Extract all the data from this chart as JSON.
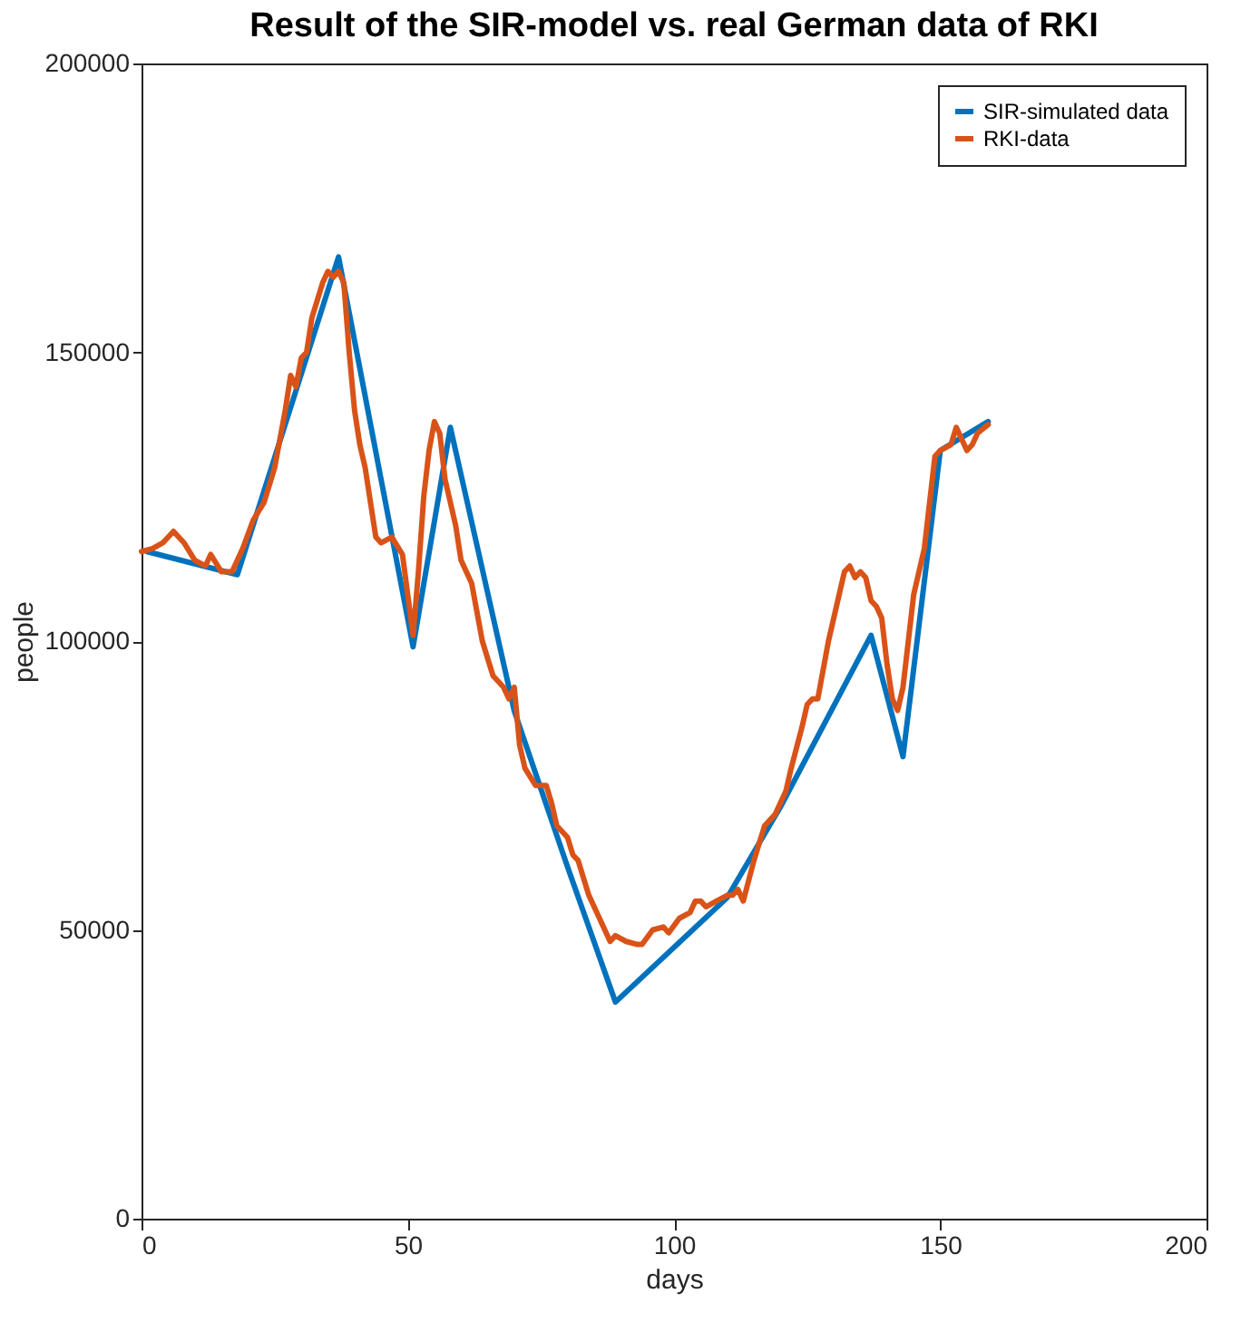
{
  "chart_data": {
    "type": "line",
    "title": "Result of the SIR-model vs. real German data of RKI",
    "xlabel": "days",
    "ylabel": "people",
    "xlim": [
      0,
      200
    ],
    "xticks": [
      0,
      50,
      100,
      150,
      200
    ],
    "ylim": [
      0,
      200000
    ],
    "yticks": [
      0,
      50000,
      100000,
      150000,
      200000
    ],
    "grid": false,
    "legend": "top right",
    "line_style": "solid",
    "marker": "none",
    "series": [
      {
        "name": "SIR-simulated data",
        "color": "#0072bd",
        "x": [
          1,
          18,
          37,
          51,
          58,
          70,
          80,
          89,
          110,
          120,
          137,
          143,
          150,
          159
        ],
        "values": [
          115500,
          111500,
          166500,
          99000,
          137000,
          87900,
          60900,
          37500,
          55600,
          71300,
          101000,
          80000,
          133000,
          138000
        ]
      },
      {
        "name": "RKI-data",
        "color": "#d95319",
        "x": [
          0,
          2,
          4,
          6,
          8,
          10,
          12,
          13,
          15,
          17,
          19,
          21,
          23,
          25,
          27,
          28,
          29,
          30,
          31,
          32,
          34,
          35,
          36,
          37,
          38,
          39,
          40,
          41,
          42,
          44,
          45,
          47,
          49,
          50,
          51,
          52,
          53,
          54,
          55,
          56,
          57,
          59,
          60,
          62,
          63,
          64,
          66,
          67,
          68,
          69,
          70,
          71,
          72,
          74,
          76,
          77,
          78,
          80,
          81,
          82,
          84,
          86,
          88,
          89,
          91,
          93,
          94,
          96,
          98,
          99,
          101,
          103,
          104,
          105,
          106,
          108,
          110,
          111,
          112,
          113,
          115,
          117,
          119,
          121,
          122,
          124,
          125,
          126,
          127,
          129,
          131,
          132,
          133,
          134,
          135,
          136,
          137,
          138,
          139,
          140,
          141,
          142,
          143,
          144,
          145,
          147,
          148,
          149,
          150,
          152,
          153,
          154,
          155,
          156,
          157,
          159
        ],
        "values": [
          115500,
          116000,
          117000,
          119000,
          117000,
          114000,
          113000,
          115000,
          112000,
          112000,
          116000,
          121000,
          124000,
          130000,
          140000,
          146000,
          144000,
          149000,
          150000,
          156000,
          162000,
          164000,
          163000,
          164000,
          162000,
          150000,
          140000,
          134000,
          130000,
          118000,
          117000,
          118000,
          115000,
          108000,
          101000,
          112000,
          125000,
          133000,
          138000,
          136000,
          128000,
          120000,
          114000,
          110000,
          105000,
          100000,
          94000,
          93000,
          92000,
          90000,
          92000,
          82000,
          78000,
          75000,
          75000,
          72000,
          68000,
          66000,
          63000,
          62000,
          56000,
          52000,
          48000,
          49000,
          48000,
          47500,
          47500,
          50000,
          50500,
          49500,
          52000,
          53000,
          55000,
          55000,
          54000,
          55000,
          56000,
          56000,
          57000,
          55000,
          62000,
          68000,
          70000,
          74000,
          78000,
          85000,
          89000,
          90000,
          90000,
          100000,
          108000,
          112000,
          113000,
          111000,
          112000,
          111000,
          107000,
          106000,
          104000,
          96000,
          90000,
          88000,
          92000,
          100000,
          108000,
          116000,
          124000,
          132000,
          133000,
          134000,
          137000,
          135000,
          133000,
          134000,
          136000,
          137500
        ]
      }
    ]
  }
}
